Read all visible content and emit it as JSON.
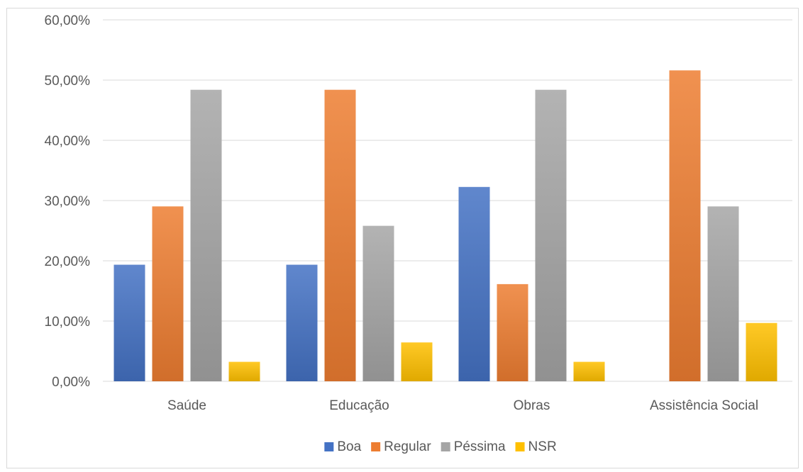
{
  "chart_data": {
    "type": "bar",
    "categories": [
      "Saúde",
      "Educação",
      "Obras",
      "Assistência Social"
    ],
    "series": [
      {
        "name": "Boa",
        "color": "#4472c4",
        "values": [
          19.35,
          19.35,
          32.26,
          0
        ]
      },
      {
        "name": "Regular",
        "color": "#ed7d31",
        "values": [
          29.03,
          48.39,
          16.13,
          51.61
        ]
      },
      {
        "name": "Péssima",
        "color": "#a5a5a5",
        "values": [
          48.39,
          25.81,
          48.39,
          29.03
        ]
      },
      {
        "name": "NSR",
        "color": "#ffc000",
        "values": [
          3.23,
          6.45,
          3.23,
          9.68
        ]
      }
    ],
    "ylim": [
      0,
      60
    ],
    "ytick_values": [
      0,
      10,
      20,
      30,
      40,
      50,
      60
    ],
    "ytick_labels": [
      "0,00%",
      "10,00%",
      "20,00%",
      "30,00%",
      "40,00%",
      "50,00%",
      "60,00%"
    ],
    "title": "",
    "xlabel": "",
    "ylabel": "",
    "grid": true,
    "legend_position": "bottom"
  }
}
